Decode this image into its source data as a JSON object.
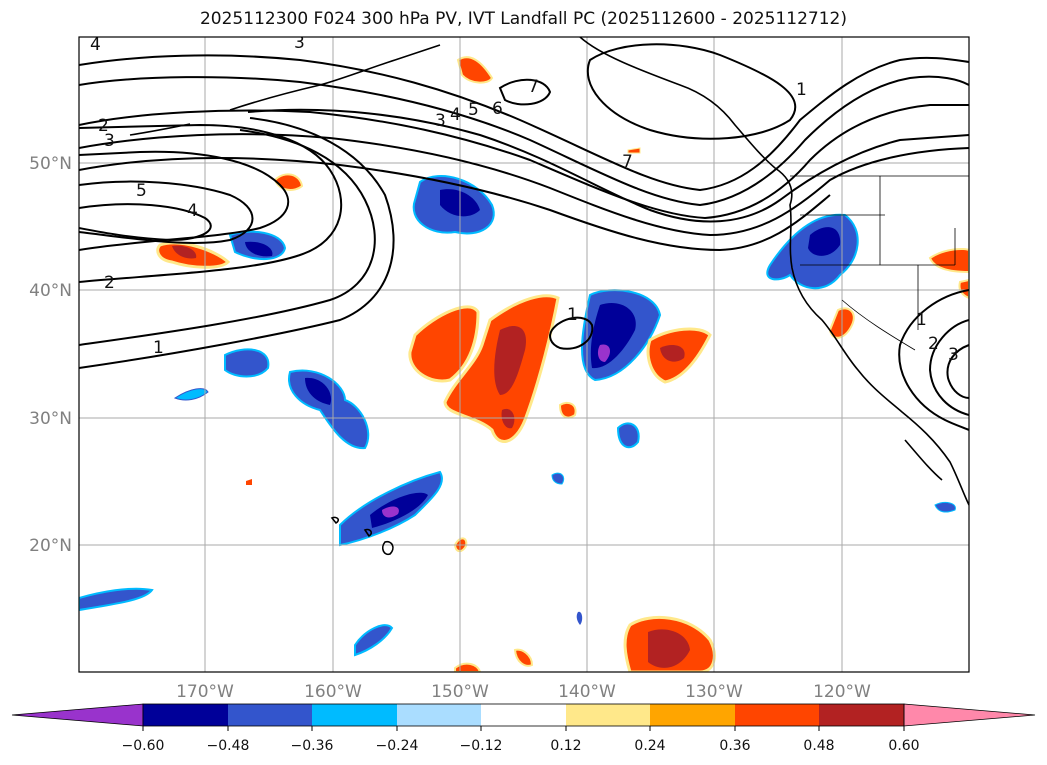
{
  "title": "2025112300 F024 300 hPa PV, IVT Landfall PC (2025112600 - 2025112712)",
  "map": {
    "lat_labels": [
      "50°N",
      "40°N",
      "30°N",
      "20°N"
    ],
    "lon_labels": [
      "170°W",
      "160°W",
      "150°W",
      "140°W",
      "130°W",
      "120°W"
    ],
    "contour_labels": [
      "4",
      "3",
      "2",
      "3",
      "5",
      "4",
      "2",
      "1",
      "3",
      "4",
      "5",
      "6",
      "7",
      "7",
      "1",
      "1",
      "2",
      "3",
      "1"
    ]
  },
  "colorbar": {
    "colors": [
      "#9933cc",
      "#000099",
      "#3355cc",
      "#00bbff",
      "#aaddff",
      "#ffffff",
      "#ffe88a",
      "#ffa500",
      "#ff4500",
      "#b22222",
      "#ff88aa"
    ],
    "tick_labels": [
      "−0.60",
      "−0.48",
      "−0.36",
      "−0.24",
      "−0.12",
      "0.12",
      "0.24",
      "0.36",
      "0.48",
      "0.60"
    ]
  }
}
